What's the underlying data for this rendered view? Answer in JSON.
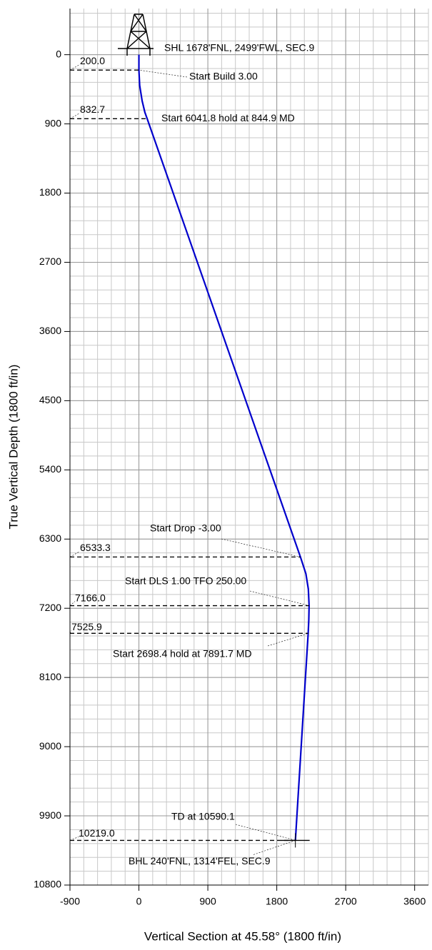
{
  "chart_data": {
    "type": "line",
    "x_label": "Vertical Section at 45.58° (1800 ft/in)",
    "y_label": "True Vertical Depth (1800 ft/in)",
    "xlim": [
      -900,
      3780
    ],
    "ylim": [
      -600,
      10800
    ],
    "xticks": [
      -900,
      0,
      900,
      1800,
      2700,
      3600
    ],
    "yticks": [
      0,
      900,
      1800,
      2700,
      3600,
      4500,
      5400,
      6300,
      7200,
      8100,
      9000,
      9900,
      10800
    ],
    "minor_step": 180,
    "grid": true,
    "series": [
      {
        "color": "#0000cc",
        "x": [
          0,
          0,
          10,
          42,
          78,
          108,
          2109,
          2180,
          2212,
          2222,
          2218,
          2210,
          2043
        ],
        "values": [
          0,
          200,
          400,
          600,
          750,
          832.7,
          6533.3,
          6750,
          6950,
          7166,
          7350,
          7525.9,
          10219
        ]
      }
    ],
    "surface_label": "SHL 1678'FNL, 2499'FWL, SEC.9",
    "bottom_label": "BHL 240'FNL, 1314'FEL, SEC.9",
    "markers": [
      {
        "tvd": 200,
        "label": "200.0",
        "vs": 0,
        "note": "Start Build 3.00"
      },
      {
        "tvd": 832.7,
        "label": "832.7",
        "vs": 108,
        "note": "Start 6041.8 hold at 844.9 MD"
      },
      {
        "tvd": 6533.3,
        "label": "6533.3",
        "vs": 2109,
        "note": "Start Drop -3.00"
      },
      {
        "tvd": 7166,
        "label": "7166.0",
        "vs": 2222,
        "note": "Start DLS 1.00 TFO 250.00"
      },
      {
        "tvd": 7525.9,
        "label": "7525.9",
        "vs": 2210,
        "note": "Start 2698.4 hold at 7891.7 MD"
      },
      {
        "tvd": 10219,
        "label": "10219.0",
        "vs": 2043,
        "note": "TD at 10590.1"
      }
    ]
  }
}
